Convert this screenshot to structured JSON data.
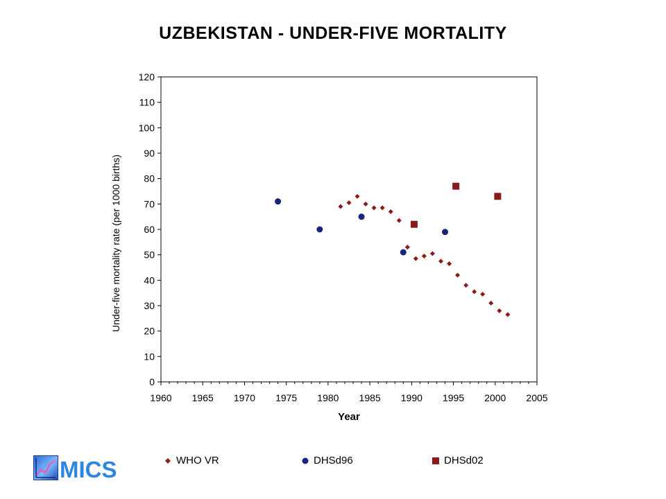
{
  "chart_data": {
    "type": "scatter",
    "title": "UZBEKISTAN - UNDER-FIVE MORTALITY",
    "xlabel": "Year",
    "ylabel": "Under-five mortality rate (per 1000 births)",
    "xlim": [
      1960,
      2005
    ],
    "ylim": [
      0,
      120
    ],
    "xticks": [
      1960,
      1965,
      1970,
      1975,
      1980,
      1985,
      1990,
      1995,
      2000,
      2005
    ],
    "yticks": [
      0,
      10,
      20,
      30,
      40,
      50,
      60,
      70,
      80,
      90,
      100,
      110,
      120
    ],
    "grid": false,
    "legend_position": "bottom",
    "series": [
      {
        "name": "WHO VR",
        "marker": "diamond",
        "color": "#8b1a1a",
        "points": [
          [
            1981.5,
            69
          ],
          [
            1982.5,
            70.5
          ],
          [
            1983.5,
            73
          ],
          [
            1984.5,
            70
          ],
          [
            1985.5,
            68.5
          ],
          [
            1986.5,
            68.5
          ],
          [
            1987.5,
            67
          ],
          [
            1988.5,
            63.5
          ],
          [
            1989.5,
            53
          ],
          [
            1990.5,
            48.5
          ],
          [
            1991.5,
            49.5
          ],
          [
            1992.5,
            50.5
          ],
          [
            1993.5,
            47.5
          ],
          [
            1994.5,
            46.5
          ],
          [
            1995.5,
            42
          ],
          [
            1996.5,
            38
          ],
          [
            1997.5,
            35.5
          ],
          [
            1998.5,
            34.5
          ],
          [
            1999.5,
            31
          ],
          [
            2000.5,
            28
          ],
          [
            2001.5,
            26.5
          ]
        ]
      },
      {
        "name": "DHSd96",
        "marker": "circle",
        "color": "#1a237e",
        "points": [
          [
            1974,
            71
          ],
          [
            1979,
            60
          ],
          [
            1984,
            65
          ],
          [
            1989,
            51
          ],
          [
            1994,
            59
          ]
        ]
      },
      {
        "name": "DHSd02",
        "marker": "square",
        "color": "#8b1a1a",
        "points": [
          [
            1990.3,
            62
          ],
          [
            1995.3,
            77
          ],
          [
            2000.3,
            73
          ]
        ]
      }
    ]
  },
  "logo": {
    "text": "MICS",
    "icon": "chart-trend-icon"
  }
}
